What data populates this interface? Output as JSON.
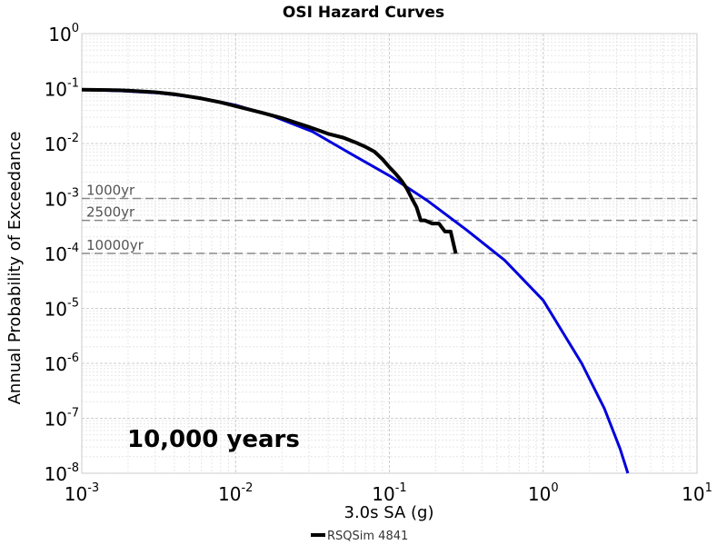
{
  "chart_data": {
    "type": "line",
    "title": "OSI Hazard Curves",
    "xlabel": "3.0s SA (g)",
    "ylabel": "Annual Probability of Exceedance",
    "xscale": "log",
    "yscale": "log",
    "xlim": [
      0.001,
      10
    ],
    "ylim": [
      1e-08,
      1
    ],
    "grid": true,
    "legend_placement": "bottom-center",
    "x_ticks": [
      {
        "base": "10",
        "exp": "-3",
        "value": 0.001
      },
      {
        "base": "10",
        "exp": "-2",
        "value": 0.01
      },
      {
        "base": "10",
        "exp": "-1",
        "value": 0.1
      },
      {
        "base": "10",
        "exp": "0",
        "value": 1
      },
      {
        "base": "10",
        "exp": "1",
        "value": 10
      }
    ],
    "y_ticks": [
      {
        "base": "10",
        "exp": "0",
        "value": 1
      },
      {
        "base": "10",
        "exp": "-1",
        "value": 0.1
      },
      {
        "base": "10",
        "exp": "-2",
        "value": 0.01
      },
      {
        "base": "10",
        "exp": "-3",
        "value": 0.001
      },
      {
        "base": "10",
        "exp": "-4",
        "value": 0.0001
      },
      {
        "base": "10",
        "exp": "-5",
        "value": 1e-05
      },
      {
        "base": "10",
        "exp": "-6",
        "value": 1e-06
      },
      {
        "base": "10",
        "exp": "-7",
        "value": 1e-07
      },
      {
        "base": "10",
        "exp": "-8",
        "value": 1e-08
      }
    ],
    "reference_lines": [
      {
        "label": "1000yr",
        "y": 0.001
      },
      {
        "label": "2500yr",
        "y": 0.0004
      },
      {
        "label": "10000yr",
        "y": 0.0001
      }
    ],
    "annotation": "10,000 years",
    "series": [
      {
        "name": "",
        "color": "#0000dd",
        "width": 3,
        "x": [
          0.001,
          0.00178,
          0.00316,
          0.00562,
          0.01,
          0.0178,
          0.0316,
          0.0562,
          0.1,
          0.178,
          0.316,
          0.562,
          1.0,
          1.78,
          2.5,
          3.16,
          3.55
        ],
        "y": [
          0.095,
          0.091,
          0.083,
          0.069,
          0.05,
          0.031,
          0.0165,
          0.0065,
          0.0026,
          0.0009,
          0.00027,
          7.5e-05,
          1.4e-05,
          1e-06,
          1.5e-07,
          2.8e-08,
          1e-08
        ]
      },
      {
        "name": "RSQSim 4841",
        "color": "#000000",
        "width": 4,
        "x": [
          0.001,
          0.0015,
          0.002,
          0.003,
          0.004,
          0.006,
          0.008,
          0.01,
          0.015,
          0.02,
          0.03,
          0.04,
          0.05,
          0.06,
          0.07,
          0.08,
          0.09,
          0.1,
          0.11,
          0.12,
          0.13,
          0.14,
          0.15,
          0.16,
          0.17,
          0.19,
          0.21,
          0.23,
          0.25,
          0.27
        ],
        "y": [
          0.095,
          0.094,
          0.092,
          0.086,
          0.079,
          0.066,
          0.056,
          0.048,
          0.036,
          0.029,
          0.02,
          0.015,
          0.0128,
          0.0105,
          0.0087,
          0.0071,
          0.0052,
          0.0037,
          0.0028,
          0.0021,
          0.0015,
          0.001,
          0.0007,
          0.0004,
          0.0004,
          0.00035,
          0.00035,
          0.00025,
          0.00025,
          0.0001
        ]
      }
    ]
  }
}
